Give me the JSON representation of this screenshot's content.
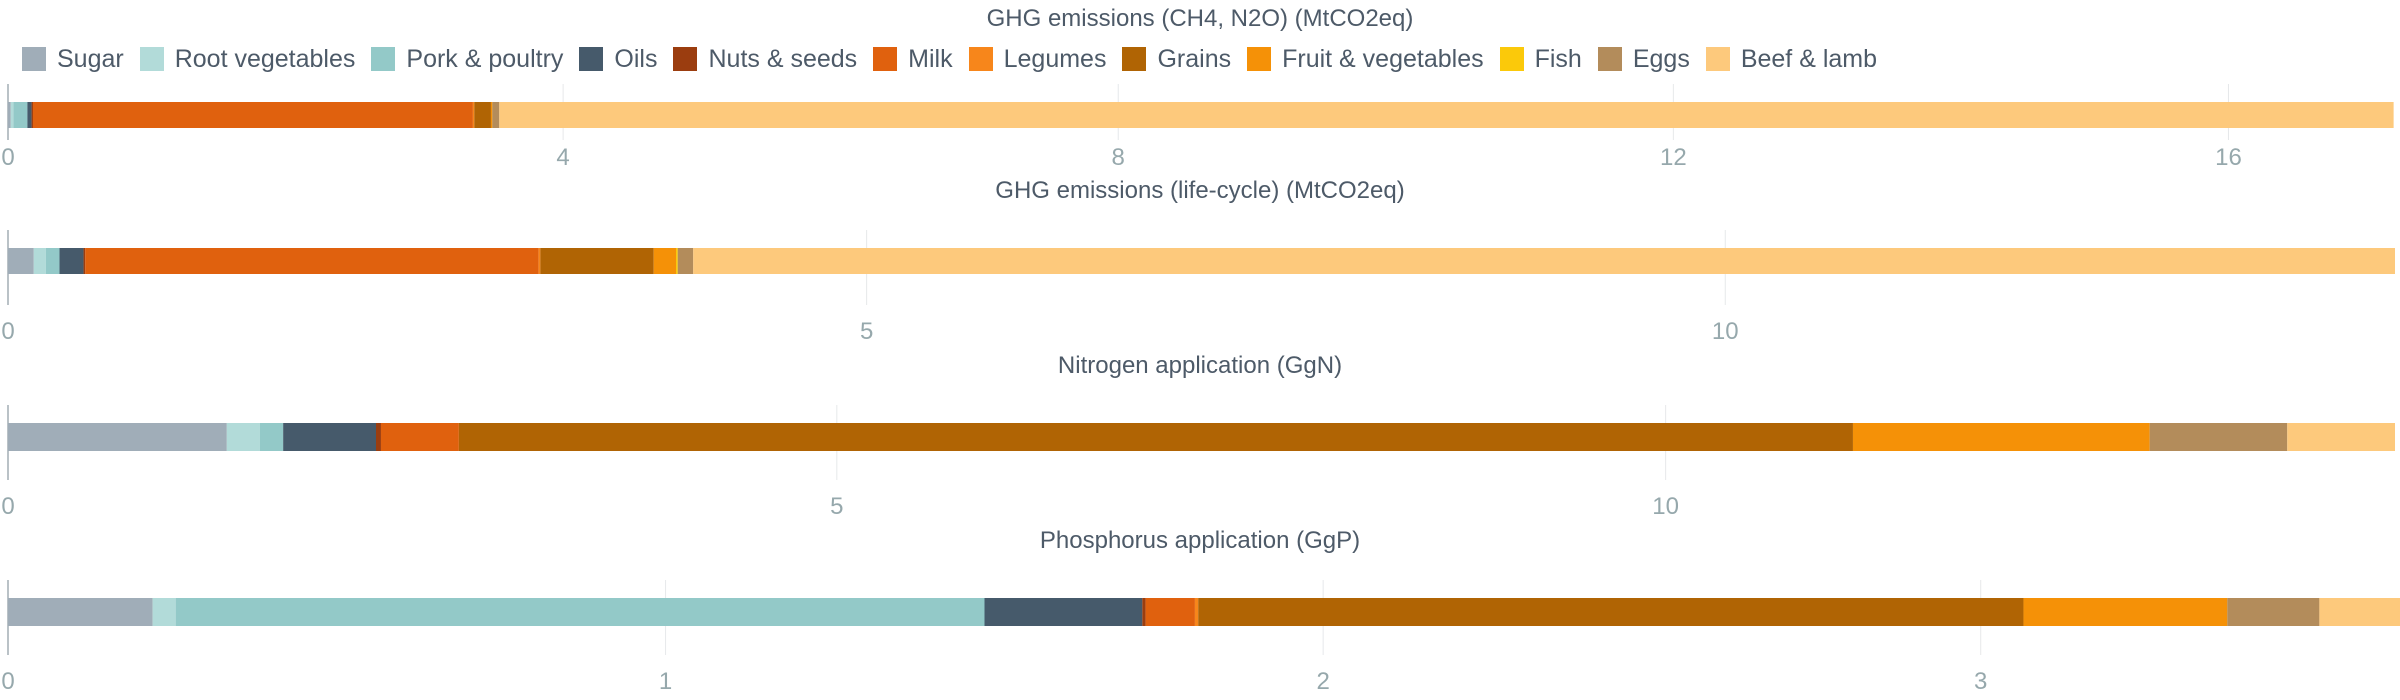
{
  "chart_data": {
    "type": "bar",
    "legend": {
      "position": "top",
      "items": [
        {
          "name": "Sugar",
          "color": "#a0adb8"
        },
        {
          "name": "Root vegetables",
          "color": "#b2dbd9"
        },
        {
          "name": "Pork & poultry",
          "color": "#93c9c8"
        },
        {
          "name": "Oils",
          "color": "#465a6b"
        },
        {
          "name": "Nuts & seeds",
          "color": "#9b3d0f"
        },
        {
          "name": "Milk",
          "color": "#e0610e"
        },
        {
          "name": "Legumes",
          "color": "#f7861b"
        },
        {
          "name": "Grains",
          "color": "#b06404"
        },
        {
          "name": "Fruit & vegetables",
          "color": "#f59107"
        },
        {
          "name": "Fish",
          "color": "#fbc90a"
        },
        {
          "name": "Eggs",
          "color": "#b38c5b"
        },
        {
          "name": "Beef & lamb",
          "color": "#fdc97c"
        }
      ]
    },
    "charts": [
      {
        "title": "GHG emissions (CH4, N2O) (MtCO2eq)",
        "xlim": [
          0,
          17.2
        ],
        "ticks": [
          0,
          4,
          8,
          12,
          16
        ],
        "values": {
          "Sugar": 0.02,
          "Root vegetables": 0.02,
          "Pork & poultry": 0.1,
          "Oils": 0.03,
          "Nuts & seeds": 0.01,
          "Milk": 3.17,
          "Legumes": 0.01,
          "Grains": 0.12,
          "Fruit & vegetables": 0.01,
          "Fish": 0.0,
          "Eggs": 0.05,
          "Beef & lamb": 13.65
        }
      },
      {
        "title": "GHG emissions (life-cycle) (MtCO2eq)",
        "xlim": [
          0,
          13.9
        ],
        "ticks": [
          0,
          5,
          10
        ],
        "values": {
          "Sugar": 0.15,
          "Root vegetables": 0.07,
          "Pork & poultry": 0.08,
          "Oils": 0.14,
          "Nuts & seeds": 0.01,
          "Milk": 2.64,
          "Legumes": 0.01,
          "Grains": 0.66,
          "Fruit & vegetables": 0.13,
          "Fish": 0.01,
          "Eggs": 0.09,
          "Beef & lamb": 9.91
        }
      },
      {
        "title": "Nitrogen application (GgN)",
        "xlim": [
          0,
          14.4
        ],
        "ticks": [
          0,
          5,
          10
        ],
        "values": {
          "Sugar": 1.32,
          "Root vegetables": 0.2,
          "Pork & poultry": 0.14,
          "Oils": 0.56,
          "Nuts & seeds": 0.03,
          "Milk": 0.47,
          "Legumes": 0.0,
          "Grains": 8.41,
          "Fruit & vegetables": 1.79,
          "Fish": 0.0,
          "Eggs": 0.83,
          "Beef & lamb": 0.65
        }
      },
      {
        "title": "Phosphorus application (GgP)",
        "xlim": [
          0,
          3.63
        ],
        "ticks": [
          0,
          1,
          2,
          3
        ],
        "values": {
          "Sugar": 0.22,
          "Root vegetables": 0.035,
          "Pork & poultry": 1.23,
          "Oils": 0.24,
          "Nuts & seeds": 0.005,
          "Milk": 0.075,
          "Legumes": 0.005,
          "Grains": 1.255,
          "Fruit & vegetables": 0.31,
          "Fish": 0.0,
          "Eggs": 0.14,
          "Beef & lamb": 0.125
        }
      }
    ]
  }
}
